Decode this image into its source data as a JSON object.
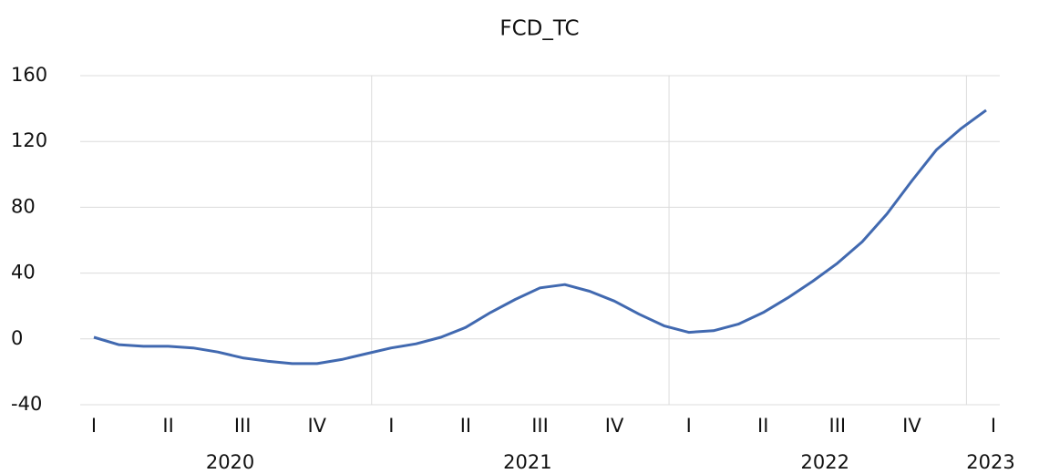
{
  "chart_data": {
    "type": "line",
    "title": "FCD_TC",
    "categories": [
      "I",
      null,
      null,
      "II",
      null,
      null,
      "III",
      null,
      null,
      "IV",
      null,
      null,
      "I",
      null,
      null,
      "II",
      null,
      null,
      "III",
      null,
      null,
      "IV",
      null,
      null,
      "I",
      null,
      null,
      "II",
      null,
      null,
      "III",
      null,
      null,
      "IV",
      null,
      null,
      "I"
    ],
    "years": [
      "2020",
      "2021",
      "2022",
      "2023"
    ],
    "series": [
      {
        "name": "FCD_TC",
        "color": "#4169b0",
        "values": [
          1,
          -3.5,
          -4.5,
          -4.5,
          -5.5,
          -8,
          -11.5,
          -13.5,
          -15,
          -15,
          -12.5,
          -9,
          -5.5,
          -3,
          1,
          7,
          16,
          24,
          31,
          33,
          29,
          23,
          15,
          8,
          4,
          5,
          9,
          16,
          25,
          35,
          46,
          59,
          76,
          96,
          115,
          128,
          139
        ]
      }
    ],
    "ylim": [
      -40,
      160
    ],
    "yticks": [
      -40,
      0,
      40,
      80,
      120,
      160
    ],
    "grid": true
  }
}
